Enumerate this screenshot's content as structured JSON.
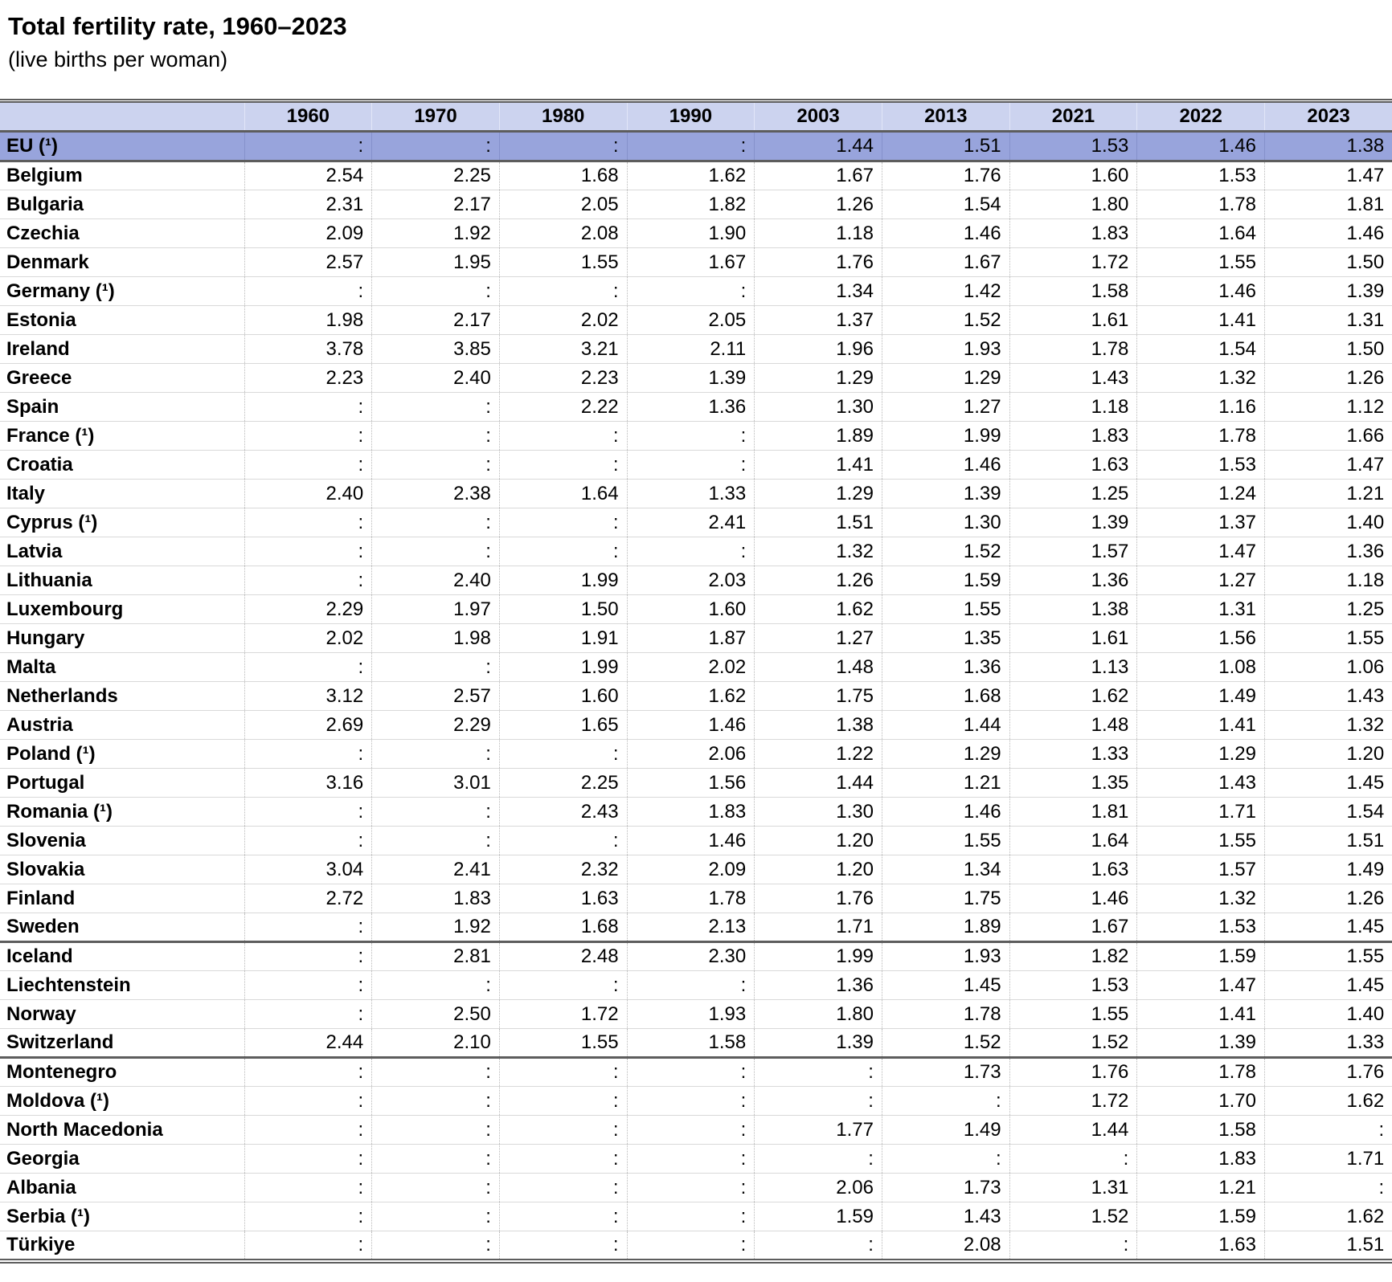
{
  "title": "Total fertility rate, 1960–2023",
  "subtitle": "(live births per woman)",
  "missing_symbol": ":",
  "colors": {
    "header_bg": "#ccd3ef",
    "eu_row_bg": "#98a4dc",
    "rule_dark": "#5d5d5d",
    "row_line": "#d9d9d9"
  },
  "chart_data": {
    "type": "table",
    "columns": [
      "1960",
      "1970",
      "1980",
      "1990",
      "2003",
      "2013",
      "2021",
      "2022",
      "2023"
    ],
    "rows": [
      {
        "label": "EU (¹)",
        "eu": true,
        "values": [
          ":",
          ":",
          ":",
          ":",
          "1.44",
          "1.51",
          "1.53",
          "1.46",
          "1.38"
        ]
      },
      {
        "label": "Belgium",
        "values": [
          "2.54",
          "2.25",
          "1.68",
          "1.62",
          "1.67",
          "1.76",
          "1.60",
          "1.53",
          "1.47"
        ]
      },
      {
        "label": "Bulgaria",
        "values": [
          "2.31",
          "2.17",
          "2.05",
          "1.82",
          "1.26",
          "1.54",
          "1.80",
          "1.78",
          "1.81"
        ]
      },
      {
        "label": "Czechia",
        "values": [
          "2.09",
          "1.92",
          "2.08",
          "1.90",
          "1.18",
          "1.46",
          "1.83",
          "1.64",
          "1.46"
        ]
      },
      {
        "label": "Denmark",
        "values": [
          "2.57",
          "1.95",
          "1.55",
          "1.67",
          "1.76",
          "1.67",
          "1.72",
          "1.55",
          "1.50"
        ]
      },
      {
        "label": "Germany (¹)",
        "values": [
          ":",
          ":",
          ":",
          ":",
          "1.34",
          "1.42",
          "1.58",
          "1.46",
          "1.39"
        ]
      },
      {
        "label": "Estonia",
        "values": [
          "1.98",
          "2.17",
          "2.02",
          "2.05",
          "1.37",
          "1.52",
          "1.61",
          "1.41",
          "1.31"
        ]
      },
      {
        "label": "Ireland",
        "values": [
          "3.78",
          "3.85",
          "3.21",
          "2.11",
          "1.96",
          "1.93",
          "1.78",
          "1.54",
          "1.50"
        ]
      },
      {
        "label": "Greece",
        "values": [
          "2.23",
          "2.40",
          "2.23",
          "1.39",
          "1.29",
          "1.29",
          "1.43",
          "1.32",
          "1.26"
        ]
      },
      {
        "label": "Spain",
        "values": [
          ":",
          ":",
          "2.22",
          "1.36",
          "1.30",
          "1.27",
          "1.18",
          "1.16",
          "1.12"
        ]
      },
      {
        "label": "France (¹)",
        "values": [
          ":",
          ":",
          ":",
          ":",
          "1.89",
          "1.99",
          "1.83",
          "1.78",
          "1.66"
        ]
      },
      {
        "label": "Croatia",
        "values": [
          ":",
          ":",
          ":",
          ":",
          "1.41",
          "1.46",
          "1.63",
          "1.53",
          "1.47"
        ]
      },
      {
        "label": "Italy",
        "values": [
          "2.40",
          "2.38",
          "1.64",
          "1.33",
          "1.29",
          "1.39",
          "1.25",
          "1.24",
          "1.21"
        ]
      },
      {
        "label": "Cyprus (¹)",
        "values": [
          ":",
          ":",
          ":",
          "2.41",
          "1.51",
          "1.30",
          "1.39",
          "1.37",
          "1.40"
        ]
      },
      {
        "label": "Latvia",
        "values": [
          ":",
          ":",
          ":",
          ":",
          "1.32",
          "1.52",
          "1.57",
          "1.47",
          "1.36"
        ]
      },
      {
        "label": "Lithuania",
        "values": [
          ":",
          "2.40",
          "1.99",
          "2.03",
          "1.26",
          "1.59",
          "1.36",
          "1.27",
          "1.18"
        ]
      },
      {
        "label": "Luxembourg",
        "values": [
          "2.29",
          "1.97",
          "1.50",
          "1.60",
          "1.62",
          "1.55",
          "1.38",
          "1.31",
          "1.25"
        ]
      },
      {
        "label": "Hungary",
        "values": [
          "2.02",
          "1.98",
          "1.91",
          "1.87",
          "1.27",
          "1.35",
          "1.61",
          "1.56",
          "1.55"
        ]
      },
      {
        "label": "Malta",
        "values": [
          ":",
          ":",
          "1.99",
          "2.02",
          "1.48",
          "1.36",
          "1.13",
          "1.08",
          "1.06"
        ]
      },
      {
        "label": "Netherlands",
        "values": [
          "3.12",
          "2.57",
          "1.60",
          "1.62",
          "1.75",
          "1.68",
          "1.62",
          "1.49",
          "1.43"
        ]
      },
      {
        "label": "Austria",
        "values": [
          "2.69",
          "2.29",
          "1.65",
          "1.46",
          "1.38",
          "1.44",
          "1.48",
          "1.41",
          "1.32"
        ]
      },
      {
        "label": "Poland (¹)",
        "values": [
          ":",
          ":",
          ":",
          "2.06",
          "1.22",
          "1.29",
          "1.33",
          "1.29",
          "1.20"
        ]
      },
      {
        "label": "Portugal",
        "values": [
          "3.16",
          "3.01",
          "2.25",
          "1.56",
          "1.44",
          "1.21",
          "1.35",
          "1.43",
          "1.45"
        ]
      },
      {
        "label": "Romania (¹)",
        "values": [
          ":",
          ":",
          "2.43",
          "1.83",
          "1.30",
          "1.46",
          "1.81",
          "1.71",
          "1.54"
        ]
      },
      {
        "label": "Slovenia",
        "values": [
          ":",
          ":",
          ":",
          "1.46",
          "1.20",
          "1.55",
          "1.64",
          "1.55",
          "1.51"
        ]
      },
      {
        "label": "Slovakia",
        "values": [
          "3.04",
          "2.41",
          "2.32",
          "2.09",
          "1.20",
          "1.34",
          "1.63",
          "1.57",
          "1.49"
        ]
      },
      {
        "label": "Finland",
        "values": [
          "2.72",
          "1.83",
          "1.63",
          "1.78",
          "1.76",
          "1.75",
          "1.46",
          "1.32",
          "1.26"
        ]
      },
      {
        "label": "Sweden",
        "sep_after": true,
        "values": [
          ":",
          "1.92",
          "1.68",
          "2.13",
          "1.71",
          "1.89",
          "1.67",
          "1.53",
          "1.45"
        ]
      },
      {
        "label": "Iceland",
        "values": [
          ":",
          "2.81",
          "2.48",
          "2.30",
          "1.99",
          "1.93",
          "1.82",
          "1.59",
          "1.55"
        ]
      },
      {
        "label": "Liechtenstein",
        "values": [
          ":",
          ":",
          ":",
          ":",
          "1.36",
          "1.45",
          "1.53",
          "1.47",
          "1.45"
        ]
      },
      {
        "label": "Norway",
        "values": [
          ":",
          "2.50",
          "1.72",
          "1.93",
          "1.80",
          "1.78",
          "1.55",
          "1.41",
          "1.40"
        ]
      },
      {
        "label": "Switzerland",
        "sep_after": true,
        "values": [
          "2.44",
          "2.10",
          "1.55",
          "1.58",
          "1.39",
          "1.52",
          "1.52",
          "1.39",
          "1.33"
        ]
      },
      {
        "label": "Montenegro",
        "values": [
          ":",
          ":",
          ":",
          ":",
          ":",
          "1.73",
          "1.76",
          "1.78",
          "1.76"
        ]
      },
      {
        "label": "Moldova (¹)",
        "values": [
          ":",
          ":",
          ":",
          ":",
          ":",
          ":",
          "1.72",
          "1.70",
          "1.62"
        ]
      },
      {
        "label": "North Macedonia",
        "values": [
          ":",
          ":",
          ":",
          ":",
          "1.77",
          "1.49",
          "1.44",
          "1.58",
          ":"
        ]
      },
      {
        "label": "Georgia",
        "values": [
          ":",
          ":",
          ":",
          ":",
          ":",
          ":",
          ":",
          "1.83",
          "1.71"
        ]
      },
      {
        "label": "Albania",
        "values": [
          ":",
          ":",
          ":",
          ":",
          "2.06",
          "1.73",
          "1.31",
          "1.21",
          ":"
        ]
      },
      {
        "label": "Serbia (¹)",
        "values": [
          ":",
          ":",
          ":",
          ":",
          "1.59",
          "1.43",
          "1.52",
          "1.59",
          "1.62"
        ]
      },
      {
        "label": "Türkiye",
        "values": [
          ":",
          ":",
          ":",
          ":",
          ":",
          "2.08",
          ":",
          "1.63",
          "1.51"
        ]
      }
    ]
  }
}
